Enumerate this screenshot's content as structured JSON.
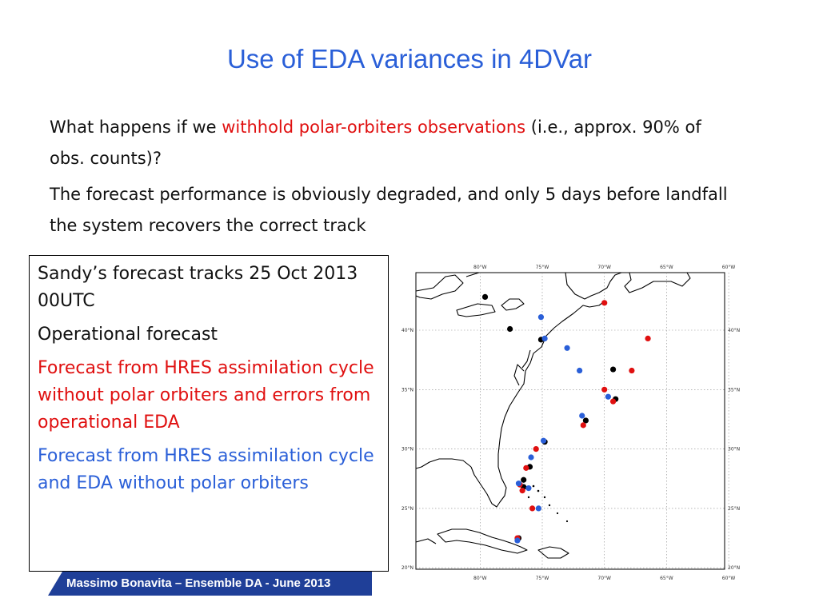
{
  "slide": {
    "title": "Use of EDA variances in 4DVar",
    "q_before": "What happens if we ",
    "q_highlight": "withhold polar-orbiters observations",
    "q_after": " (i.e., approx. 90% of obs. counts)?",
    "answer": "The forecast performance is obviously degraded, and only 5 days before landfall the system recovers the correct track"
  },
  "legend": {
    "heading": "Sandy’s forecast tracks 25 Oct 2013 00UTC",
    "operational": "Operational forecast",
    "red_label": "Forecast from HRES assimilation cycle without polar orbiters and errors from operational EDA",
    "blue_label": "Forecast from HRES assimilation cycle and EDA without polar orbiters",
    "colors": {
      "operational": "#000000",
      "red": "#e01010",
      "blue": "#2a5fd8"
    }
  },
  "map": {
    "lon_labels_top": [
      "80°W",
      "75°W",
      "70°W",
      "65°W",
      "60°W"
    ],
    "lon_labels_bottom": [
      "80°W",
      "75°W",
      "70°W",
      "65°W",
      "60°W"
    ],
    "lat_labels": [
      "40°N",
      "35°N",
      "30°N",
      "25°N",
      "20°N"
    ],
    "tracks": {
      "operational": [
        [
          -79.6,
          42.8
        ],
        [
          -77.6,
          40.1
        ],
        [
          -75.1,
          39.2
        ],
        [
          -69.3,
          36.7
        ],
        [
          -69.1,
          34.2
        ],
        [
          -71.5,
          32.4
        ],
        [
          -74.8,
          30.6
        ],
        [
          -76.0,
          28.5
        ],
        [
          -76.5,
          27.4
        ],
        [
          -76.5,
          26.8
        ],
        [
          -76.9,
          22.5
        ]
      ],
      "red": [
        [
          -70.0,
          42.3
        ],
        [
          -66.5,
          39.3
        ],
        [
          -67.8,
          36.6
        ],
        [
          -70.0,
          35.0
        ],
        [
          -69.3,
          34.0
        ],
        [
          -71.7,
          32.0
        ],
        [
          -75.5,
          30.0
        ],
        [
          -76.3,
          28.4
        ],
        [
          -76.8,
          27.0
        ],
        [
          -76.6,
          26.5
        ],
        [
          -75.8,
          25.0
        ],
        [
          -77.0,
          22.5
        ]
      ],
      "blue": [
        [
          -75.1,
          41.1
        ],
        [
          -74.8,
          39.3
        ],
        [
          -73.0,
          38.5
        ],
        [
          -72.0,
          36.6
        ],
        [
          -69.7,
          34.4
        ],
        [
          -71.8,
          32.8
        ],
        [
          -74.9,
          30.7
        ],
        [
          -75.9,
          29.3
        ],
        [
          -76.9,
          27.1
        ],
        [
          -76.1,
          26.7
        ],
        [
          -75.3,
          25.0
        ],
        [
          -77.0,
          22.3
        ]
      ]
    }
  },
  "footer": {
    "text": "Massimo Bonavita –  Ensemble DA - June 2013"
  }
}
